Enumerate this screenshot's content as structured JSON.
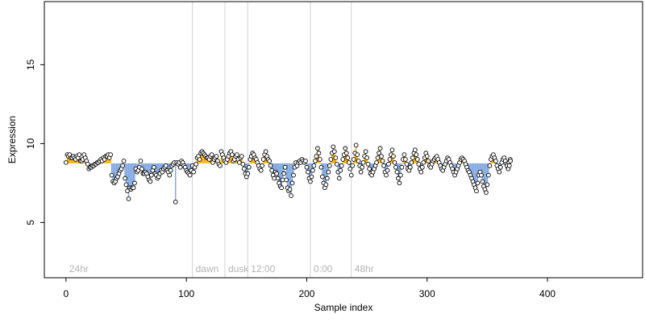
{
  "chart_data": {
    "type": "scatter",
    "xlabel": "Sample index",
    "ylabel": "Expression",
    "xlim": [
      -18,
      479
    ],
    "ylim": [
      1.5,
      19.0
    ],
    "x_ticks": [
      0,
      100,
      200,
      300,
      400
    ],
    "y_ticks": [
      5,
      10,
      15
    ],
    "baseline": 8.75,
    "colors": {
      "above": "#ffb000",
      "below": "#7ea6e0",
      "divider": "#d3d3d3",
      "annotation": "#b4b4b4",
      "point_fill": "#ffffff",
      "point_edge": "#000000"
    },
    "grid": false,
    "legend": "none",
    "annotations": [
      {
        "x": 0,
        "label": "24hr",
        "divider": false
      },
      {
        "x": 105,
        "label": "dawn",
        "divider": true
      },
      {
        "x": 132,
        "label": "dusk",
        "divider": true
      },
      {
        "x": 151,
        "label": "12:00",
        "divider": true
      },
      {
        "x": 203,
        "label": "0:00",
        "divider": true
      },
      {
        "x": 237,
        "label": "48hr",
        "divider": true
      }
    ],
    "points_x_start": 0,
    "points": [
      8.8,
      9.3,
      9.2,
      9.3,
      9.1,
      9.1,
      9.2,
      9.1,
      9.0,
      9.2,
      9.1,
      9.3,
      8.9,
      8.9,
      9.0,
      9.3,
      9.1,
      8.9,
      8.7,
      8.4,
      8.5,
      8.5,
      8.6,
      8.6,
      8.7,
      8.7,
      8.8,
      8.8,
      8.9,
      9.0,
      8.9,
      9.1,
      9.0,
      9.2,
      9.2,
      9.3,
      9.1,
      9.3,
      8.0,
      7.6,
      7.5,
      7.6,
      7.8,
      7.9,
      8.1,
      8.3,
      8.4,
      8.6,
      8.9,
      7.8,
      7.4,
      7.0,
      6.5,
      7.2,
      7.1,
      7.2,
      7.2,
      7.5,
      8.4,
      8.2,
      8.3,
      8.5,
      8.9,
      8.4,
      8.1,
      8.1,
      8.2,
      8.1,
      7.9,
      7.7,
      7.6,
      8.0,
      8.3,
      8.5,
      8.1,
      8.0,
      7.8,
      7.9,
      8.1,
      8.3,
      8.2,
      8.4,
      8.5,
      8.6,
      8.3,
      8.2,
      8.0,
      8.3,
      8.6,
      8.7,
      8.8,
      6.3,
      8.8,
      8.7,
      8.8,
      8.5,
      8.9,
      8.8,
      8.6,
      8.5,
      8.3,
      8.2,
      8.1,
      8.0,
      8.3,
      8.6,
      8.2,
      8.5,
      8.7,
      9.1,
      9.2,
      9.0,
      9.4,
      9.5,
      9.4,
      9.3,
      9.2,
      9.1,
      9.1,
      9.0,
      9.2,
      9.3,
      8.8,
      9.0,
      9.1,
      9.2,
      8.9,
      8.7,
      8.6,
      9.5,
      9.3,
      9.1,
      8.9,
      8.8,
      9.0,
      9.2,
      9.4,
      9.5,
      9.3,
      8.9,
      9.0,
      9.2,
      9.3,
      9.0,
      8.8,
      9.1,
      9.2,
      8.7,
      8.4,
      8.1,
      7.9,
      8.1,
      8.5,
      9.0,
      9.2,
      9.4,
      9.3,
      9.1,
      9.0,
      8.8,
      8.6,
      8.4,
      8.3,
      8.6,
      9.0,
      9.3,
      9.5,
      9.2,
      9.0,
      8.9,
      8.6,
      8.3,
      8.0,
      7.8,
      8.2,
      8.1,
      7.8,
      7.5,
      7.3,
      7.2,
      7.7,
      8.1,
      8.5,
      7.7,
      7.2,
      7.0,
      7.1,
      6.7,
      7.5,
      8.0,
      8.5,
      8.8,
      8.6,
      8.8,
      8.9,
      8.8,
      9.0,
      8.9,
      8.8,
      8.9,
      8.5,
      8.2,
      7.8,
      7.6,
      7.9,
      8.3,
      8.6,
      8.9,
      9.2,
      9.7,
      9.4,
      9.0,
      8.5,
      7.9,
      7.5,
      7.2,
      7.4,
      7.8,
      8.2,
      8.6,
      9.0,
      9.4,
      9.8,
      9.5,
      9.1,
      8.7,
      8.2,
      7.8,
      8.3,
      8.6,
      9.0,
      9.3,
      9.7,
      9.4,
      9.1,
      8.8,
      8.4,
      8.0,
      8.6,
      9.0,
      9.4,
      9.9,
      9.3,
      8.9,
      8.6,
      8.2,
      8.5,
      8.8,
      9.2,
      9.5,
      9.1,
      8.7,
      8.4,
      8.1,
      8.0,
      8.2,
      8.4,
      8.6,
      8.8,
      9.1,
      9.4,
      9.7,
      9.2,
      8.9,
      8.6,
      8.2,
      8.0,
      8.3,
      8.7,
      9.0,
      9.3,
      9.6,
      9.2,
      8.8,
      8.5,
      8.2,
      7.8,
      7.5,
      8.0,
      8.5,
      9.0,
      9.3,
      9.0,
      8.7,
      8.4,
      8.3,
      8.5,
      8.8,
      9.1,
      9.4,
      9.6,
      9.3,
      9.0,
      8.7,
      8.4,
      8.2,
      8.5,
      8.8,
      9.1,
      9.4,
      9.2,
      8.9,
      8.6,
      8.5,
      8.7,
      8.9,
      9.0,
      9.1,
      9.2,
      9.0,
      8.8,
      8.6,
      8.4,
      8.3,
      8.5,
      8.7,
      8.9,
      9.1,
      9.0,
      8.8,
      8.6,
      8.4,
      8.2,
      8.0,
      8.2,
      8.4,
      8.6,
      8.8,
      9.0,
      9.1,
      9.0,
      8.9,
      8.7,
      8.5,
      8.3,
      8.2,
      8.0,
      7.8,
      7.6,
      7.4,
      7.2,
      7.0,
      7.5,
      8.0,
      8.2,
      8.0,
      7.6,
      7.3,
      7.1,
      6.9,
      7.4,
      8.0,
      8.6,
      9.0,
      9.2,
      9.3,
      9.1,
      8.9,
      8.6,
      8.4,
      8.2,
      8.5,
      8.8,
      9.0,
      9.1,
      8.9,
      8.7,
      8.5,
      8.8,
      9.0
    ],
    "tail_points": [
      8.6,
      8.4,
      8.6,
      8.9
    ]
  }
}
